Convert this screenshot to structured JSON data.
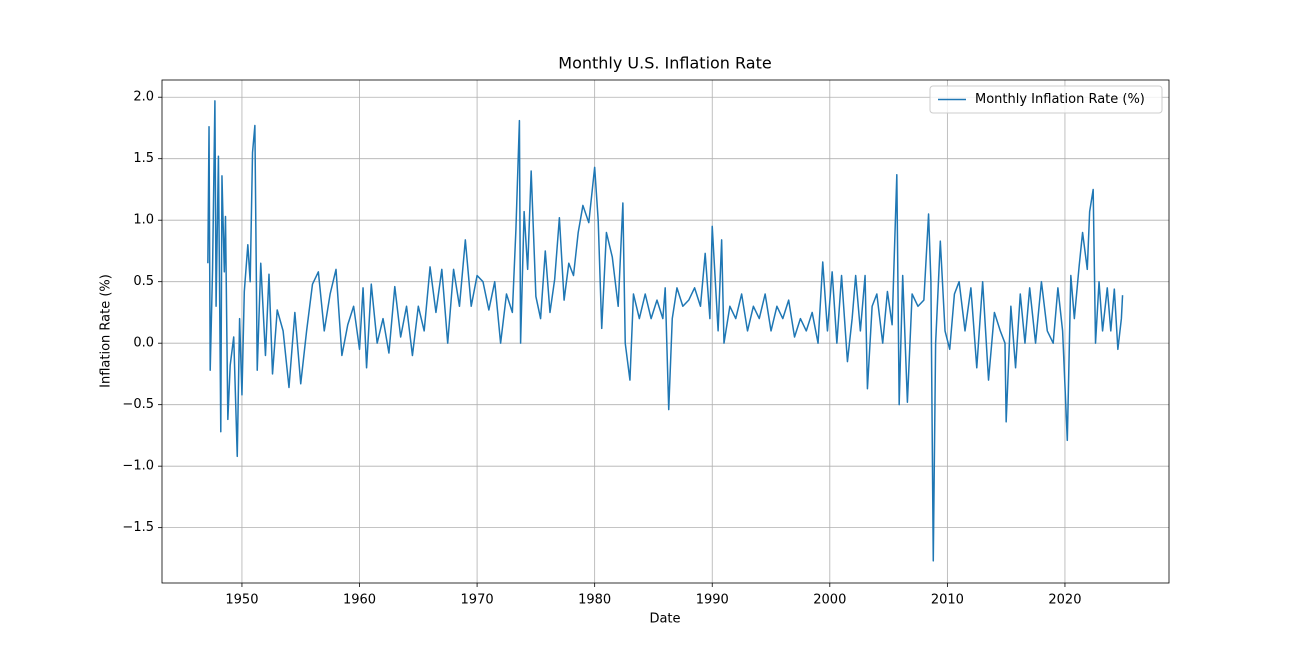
{
  "chart_data": {
    "type": "line",
    "title": "Monthly U.S. Inflation Rate",
    "x_label": "Date",
    "y_label": "Inflation Rate (%)",
    "x": [
      1947.1,
      1947.2,
      1947.3,
      1947.5,
      1947.7,
      1947.8,
      1948.0,
      1948.2,
      1948.3,
      1948.5,
      1948.6,
      1948.8,
      1949.0,
      1949.3,
      1949.6,
      1949.8,
      1950.0,
      1950.2,
      1950.5,
      1950.7,
      1950.9,
      1951.1,
      1951.3,
      1951.6,
      1952.0,
      1952.3,
      1952.6,
      1953.0,
      1953.5,
      1954.0,
      1954.5,
      1955.0,
      1955.5,
      1956.0,
      1956.5,
      1957.0,
      1957.5,
      1958.0,
      1958.5,
      1959.0,
      1959.5,
      1960.0,
      1960.3,
      1960.6,
      1961.0,
      1961.5,
      1962.0,
      1962.5,
      1963.0,
      1963.5,
      1964.0,
      1964.5,
      1965.0,
      1965.5,
      1966.0,
      1966.5,
      1967.0,
      1967.5,
      1968.0,
      1968.5,
      1969.0,
      1969.5,
      1970.0,
      1970.5,
      1971.0,
      1971.5,
      1972.0,
      1972.5,
      1973.0,
      1973.3,
      1973.6,
      1973.7,
      1974.0,
      1974.3,
      1974.6,
      1975.0,
      1975.4,
      1975.8,
      1976.2,
      1976.6,
      1977.0,
      1977.4,
      1977.8,
      1978.2,
      1978.6,
      1979.0,
      1979.5,
      1980.0,
      1980.3,
      1980.6,
      1981.0,
      1981.5,
      1982.0,
      1982.4,
      1982.6,
      1983.0,
      1983.3,
      1983.8,
      1984.3,
      1984.8,
      1985.3,
      1985.8,
      1986.0,
      1986.3,
      1986.6,
      1987.0,
      1987.5,
      1988.0,
      1988.5,
      1989.0,
      1989.4,
      1989.8,
      1990.0,
      1990.5,
      1990.8,
      1991.0,
      1991.5,
      1992.0,
      1992.5,
      1993.0,
      1993.5,
      1994.0,
      1994.5,
      1995.0,
      1995.5,
      1996.0,
      1996.5,
      1997.0,
      1997.5,
      1998.0,
      1998.5,
      1999.0,
      1999.4,
      1999.8,
      2000.2,
      2000.6,
      2001.0,
      2001.5,
      2001.9,
      2002.2,
      2002.6,
      2003.0,
      2003.2,
      2003.6,
      2004.0,
      2004.5,
      2004.9,
      2005.3,
      2005.7,
      2005.9,
      2006.2,
      2006.6,
      2007.0,
      2007.5,
      2008.0,
      2008.4,
      2008.6,
      2008.8,
      2009.0,
      2009.4,
      2009.8,
      2010.2,
      2010.6,
      2011.0,
      2011.5,
      2012.0,
      2012.5,
      2013.0,
      2013.5,
      2014.0,
      2014.5,
      2014.9,
      2015.0,
      2015.4,
      2015.8,
      2016.2,
      2016.6,
      2017.0,
      2017.5,
      2018.0,
      2018.5,
      2019.0,
      2019.4,
      2019.8,
      2020.2,
      2020.5,
      2020.8,
      2021.2,
      2021.5,
      2021.9,
      2022.1,
      2022.4,
      2022.6,
      2022.9,
      2023.2,
      2023.6,
      2023.9,
      2024.2,
      2024.5,
      2024.8,
      2024.9
    ],
    "series": [
      {
        "name": "Monthly Inflation Rate (%)",
        "color": "#1f77b4",
        "values": [
          0.65,
          1.76,
          -0.22,
          0.6,
          1.97,
          0.3,
          1.52,
          -0.72,
          1.36,
          0.58,
          1.03,
          -0.62,
          -0.18,
          0.05,
          -0.92,
          0.2,
          -0.42,
          0.42,
          0.8,
          0.5,
          1.55,
          1.77,
          -0.22,
          0.65,
          -0.1,
          0.56,
          -0.25,
          0.27,
          0.1,
          -0.36,
          0.25,
          -0.33,
          0.1,
          0.48,
          0.58,
          0.1,
          0.4,
          0.6,
          -0.1,
          0.15,
          0.3,
          -0.05,
          0.45,
          -0.2,
          0.48,
          0.0,
          0.2,
          -0.08,
          0.46,
          0.05,
          0.3,
          -0.1,
          0.3,
          0.1,
          0.62,
          0.25,
          0.6,
          0.0,
          0.6,
          0.3,
          0.84,
          0.3,
          0.55,
          0.5,
          0.27,
          0.5,
          0.0,
          0.4,
          0.25,
          0.92,
          1.81,
          0.0,
          1.07,
          0.6,
          1.4,
          0.38,
          0.2,
          0.75,
          0.25,
          0.52,
          1.02,
          0.35,
          0.65,
          0.55,
          0.9,
          1.12,
          0.98,
          1.43,
          1.0,
          0.12,
          0.9,
          0.7,
          0.3,
          1.14,
          0.0,
          -0.3,
          0.4,
          0.2,
          0.4,
          0.2,
          0.35,
          0.2,
          0.45,
          -0.54,
          0.2,
          0.45,
          0.3,
          0.35,
          0.45,
          0.3,
          0.73,
          0.2,
          0.95,
          0.1,
          0.84,
          0.0,
          0.3,
          0.2,
          0.4,
          0.1,
          0.3,
          0.2,
          0.4,
          0.1,
          0.3,
          0.2,
          0.35,
          0.05,
          0.2,
          0.1,
          0.25,
          0.0,
          0.66,
          0.1,
          0.58,
          0.0,
          0.55,
          -0.15,
          0.2,
          0.55,
          0.1,
          0.55,
          -0.37,
          0.3,
          0.4,
          0.0,
          0.42,
          0.15,
          1.37,
          -0.5,
          0.55,
          -0.48,
          0.4,
          0.3,
          0.35,
          1.05,
          0.5,
          -1.77,
          0.0,
          0.83,
          0.1,
          -0.05,
          0.4,
          0.5,
          0.1,
          0.45,
          -0.2,
          0.5,
          -0.3,
          0.25,
          0.1,
          0.0,
          -0.64,
          0.3,
          -0.2,
          0.4,
          0.0,
          0.45,
          0.0,
          0.5,
          0.1,
          0.0,
          0.45,
          0.1,
          -0.79,
          0.55,
          0.2,
          0.62,
          0.9,
          0.6,
          1.07,
          1.25,
          0.0,
          0.5,
          0.1,
          0.45,
          0.1,
          0.44,
          -0.05,
          0.2,
          0.39
        ]
      }
    ],
    "xlim": [
      1943.2,
      2028.85
    ],
    "ylim": [
      -1.95,
      2.14
    ],
    "xticks": [
      1950,
      1960,
      1970,
      1980,
      1990,
      2000,
      2010,
      2020
    ],
    "yticks": [
      {
        "value": -1.5,
        "label": "−1.5"
      },
      {
        "value": -1.0,
        "label": "−1.0"
      },
      {
        "value": -0.5,
        "label": "−0.5"
      },
      {
        "value": 0.0,
        "label": "0.0"
      },
      {
        "value": 0.5,
        "label": "0.5"
      },
      {
        "value": 1.0,
        "label": "1.0"
      },
      {
        "value": 1.5,
        "label": "1.5"
      },
      {
        "value": 2.0,
        "label": "2.0"
      }
    ],
    "grid": true,
    "legend": "upper right"
  }
}
